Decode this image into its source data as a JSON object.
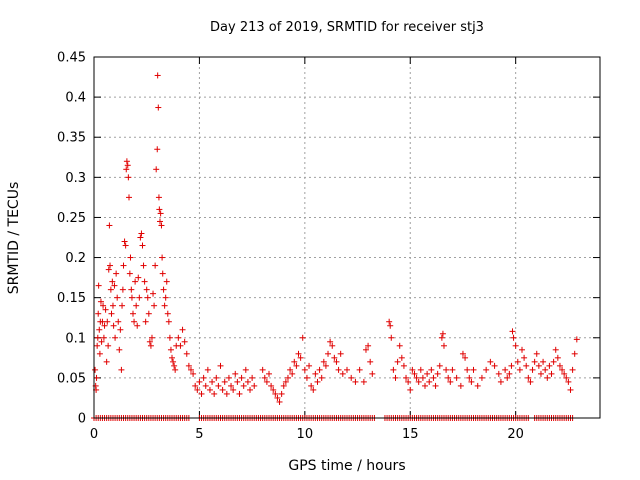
{
  "chart_data": {
    "type": "scatter",
    "title": "Day 213 of 2019, SRMTID for receiver stj3",
    "xlabel": "GPS time / hours",
    "ylabel": "SRMTID / TECUs",
    "xlim": [
      0,
      24
    ],
    "ylim": [
      0,
      0.45
    ],
    "xticks": [
      0,
      5,
      10,
      15,
      20
    ],
    "yticks": [
      0,
      0.05,
      0.1,
      0.15,
      0.2,
      0.25,
      0.3,
      0.35,
      0.4,
      0.45
    ],
    "xtick_labels": [
      "0",
      "5",
      "10",
      "15",
      "20"
    ],
    "ytick_labels": [
      "0",
      "0.05",
      "0.1",
      "0.15",
      "0.2",
      "0.25",
      "0.3",
      "0.35",
      "0.4",
      "0.45"
    ],
    "grid": true,
    "marker": "+",
    "color": "#e00000",
    "series": [
      {
        "name": "SRMTID",
        "points": [
          [
            0.05,
            0.06
          ],
          [
            0.08,
            0.04
          ],
          [
            0.1,
            0.035
          ],
          [
            0.12,
            0.05
          ],
          [
            0.15,
            0.09
          ],
          [
            0.18,
            0.1
          ],
          [
            0.2,
            0.13
          ],
          [
            0.22,
            0.165
          ],
          [
            0.25,
            0.11
          ],
          [
            0.28,
            0.08
          ],
          [
            0.3,
            0.12
          ],
          [
            0.33,
            0.145
          ],
          [
            0.36,
            0.095
          ],
          [
            0.4,
            0.12
          ],
          [
            0.43,
            0.14
          ],
          [
            0.47,
            0.1
          ],
          [
            0.5,
            0.115
          ],
          [
            0.55,
            0.135
          ],
          [
            0.6,
            0.07
          ],
          [
            0.63,
            0.12
          ],
          [
            0.67,
            0.09
          ],
          [
            0.7,
            0.185
          ],
          [
            0.73,
            0.24
          ],
          [
            0.76,
            0.19
          ],
          [
            0.8,
            0.16
          ],
          [
            0.83,
            0.13
          ],
          [
            0.87,
            0.17
          ],
          [
            0.9,
            0.14
          ],
          [
            0.93,
            0.115
          ],
          [
            0.97,
            0.165
          ],
          [
            1.0,
            0.1
          ],
          [
            1.05,
            0.18
          ],
          [
            1.1,
            0.15
          ],
          [
            1.15,
            0.12
          ],
          [
            1.2,
            0.085
          ],
          [
            1.25,
            0.11
          ],
          [
            1.3,
            0.06
          ],
          [
            1.33,
            0.14
          ],
          [
            1.37,
            0.16
          ],
          [
            1.4,
            0.19
          ],
          [
            1.45,
            0.22
          ],
          [
            1.5,
            0.215
          ],
          [
            1.53,
            0.31
          ],
          [
            1.56,
            0.32
          ],
          [
            1.6,
            0.315
          ],
          [
            1.63,
            0.3
          ],
          [
            1.66,
            0.275
          ],
          [
            1.7,
            0.18
          ],
          [
            1.73,
            0.2
          ],
          [
            1.77,
            0.16
          ],
          [
            1.8,
            0.15
          ],
          [
            1.85,
            0.13
          ],
          [
            1.9,
            0.12
          ],
          [
            1.95,
            0.17
          ],
          [
            2.0,
            0.14
          ],
          [
            2.05,
            0.115
          ],
          [
            2.1,
            0.175
          ],
          [
            2.15,
            0.15
          ],
          [
            2.2,
            0.225
          ],
          [
            2.25,
            0.23
          ],
          [
            2.3,
            0.215
          ],
          [
            2.35,
            0.19
          ],
          [
            2.4,
            0.17
          ],
          [
            2.45,
            0.12
          ],
          [
            2.5,
            0.16
          ],
          [
            2.55,
            0.15
          ],
          [
            2.6,
            0.13
          ],
          [
            2.65,
            0.095
          ],
          [
            2.7,
            0.09
          ],
          [
            2.75,
            0.1
          ],
          [
            2.8,
            0.155
          ],
          [
            2.85,
            0.14
          ],
          [
            2.9,
            0.19
          ],
          [
            2.95,
            0.31
          ],
          [
            3.0,
            0.335
          ],
          [
            3.02,
            0.427
          ],
          [
            3.05,
            0.387
          ],
          [
            3.08,
            0.275
          ],
          [
            3.1,
            0.26
          ],
          [
            3.13,
            0.245
          ],
          [
            3.16,
            0.255
          ],
          [
            3.2,
            0.24
          ],
          [
            3.23,
            0.2
          ],
          [
            3.26,
            0.18
          ],
          [
            3.3,
            0.16
          ],
          [
            3.35,
            0.14
          ],
          [
            3.4,
            0.15
          ],
          [
            3.45,
            0.17
          ],
          [
            3.5,
            0.13
          ],
          [
            3.55,
            0.12
          ],
          [
            3.6,
            0.1
          ],
          [
            3.65,
            0.085
          ],
          [
            3.7,
            0.075
          ],
          [
            3.75,
            0.07
          ],
          [
            3.8,
            0.065
          ],
          [
            3.85,
            0.06
          ],
          [
            3.9,
            0.09
          ],
          [
            4.0,
            0.1
          ],
          [
            4.1,
            0.09
          ],
          [
            4.2,
            0.11
          ],
          [
            4.3,
            0.095
          ],
          [
            4.4,
            0.08
          ],
          [
            4.5,
            0.065
          ],
          [
            4.6,
            0.06
          ],
          [
            4.7,
            0.055
          ],
          [
            4.8,
            0.04
          ],
          [
            4.9,
            0.035
          ],
          [
            5.0,
            0.045
          ],
          [
            5.1,
            0.03
          ],
          [
            5.2,
            0.05
          ],
          [
            5.3,
            0.04
          ],
          [
            5.4,
            0.06
          ],
          [
            5.5,
            0.035
          ],
          [
            5.6,
            0.045
          ],
          [
            5.7,
            0.03
          ],
          [
            5.8,
            0.05
          ],
          [
            5.9,
            0.04
          ],
          [
            6.0,
            0.065
          ],
          [
            6.1,
            0.035
          ],
          [
            6.2,
            0.045
          ],
          [
            6.3,
            0.03
          ],
          [
            6.4,
            0.05
          ],
          [
            6.5,
            0.04
          ],
          [
            6.6,
            0.035
          ],
          [
            6.7,
            0.055
          ],
          [
            6.8,
            0.045
          ],
          [
            6.9,
            0.03
          ],
          [
            7.0,
            0.05
          ],
          [
            7.1,
            0.04
          ],
          [
            7.2,
            0.06
          ],
          [
            7.3,
            0.045
          ],
          [
            7.4,
            0.035
          ],
          [
            7.5,
            0.05
          ],
          [
            7.6,
            0.04
          ],
          [
            8.0,
            0.06
          ],
          [
            8.1,
            0.05
          ],
          [
            8.2,
            0.045
          ],
          [
            8.3,
            0.055
          ],
          [
            8.4,
            0.04
          ],
          [
            8.5,
            0.035
          ],
          [
            8.6,
            0.03
          ],
          [
            8.7,
            0.025
          ],
          [
            8.8,
            0.02
          ],
          [
            8.9,
            0.03
          ],
          [
            9.0,
            0.04
          ],
          [
            9.1,
            0.045
          ],
          [
            9.2,
            0.05
          ],
          [
            9.3,
            0.06
          ],
          [
            9.4,
            0.055
          ],
          [
            9.5,
            0.07
          ],
          [
            9.6,
            0.065
          ],
          [
            9.7,
            0.08
          ],
          [
            9.8,
            0.075
          ],
          [
            9.9,
            0.1
          ],
          [
            10.0,
            0.06
          ],
          [
            10.1,
            0.05
          ],
          [
            10.2,
            0.065
          ],
          [
            10.3,
            0.04
          ],
          [
            10.4,
            0.035
          ],
          [
            10.5,
            0.055
          ],
          [
            10.6,
            0.045
          ],
          [
            10.7,
            0.06
          ],
          [
            10.8,
            0.05
          ],
          [
            10.9,
            0.07
          ],
          [
            11.0,
            0.065
          ],
          [
            11.1,
            0.08
          ],
          [
            11.2,
            0.095
          ],
          [
            11.3,
            0.09
          ],
          [
            11.4,
            0.075
          ],
          [
            11.5,
            0.07
          ],
          [
            11.6,
            0.06
          ],
          [
            11.7,
            0.08
          ],
          [
            11.8,
            0.055
          ],
          [
            12.0,
            0.06
          ],
          [
            12.2,
            0.05
          ],
          [
            12.4,
            0.045
          ],
          [
            12.6,
            0.06
          ],
          [
            12.8,
            0.045
          ],
          [
            12.9,
            0.085
          ],
          [
            13.0,
            0.09
          ],
          [
            13.1,
            0.07
          ],
          [
            13.2,
            0.055
          ],
          [
            14.0,
            0.12
          ],
          [
            14.05,
            0.115
          ],
          [
            14.1,
            0.1
          ],
          [
            14.2,
            0.06
          ],
          [
            14.3,
            0.05
          ],
          [
            14.4,
            0.07
          ],
          [
            14.5,
            0.09
          ],
          [
            14.6,
            0.075
          ],
          [
            14.7,
            0.065
          ],
          [
            14.8,
            0.05
          ],
          [
            14.9,
            0.045
          ],
          [
            15.0,
            0.035
          ],
          [
            15.1,
            0.06
          ],
          [
            15.2,
            0.055
          ],
          [
            15.3,
            0.05
          ],
          [
            15.4,
            0.045
          ],
          [
            15.5,
            0.06
          ],
          [
            15.6,
            0.05
          ],
          [
            15.7,
            0.04
          ],
          [
            15.8,
            0.055
          ],
          [
            15.9,
            0.045
          ],
          [
            16.0,
            0.06
          ],
          [
            16.1,
            0.05
          ],
          [
            16.2,
            0.04
          ],
          [
            16.3,
            0.055
          ],
          [
            16.4,
            0.065
          ],
          [
            16.5,
            0.1
          ],
          [
            16.55,
            0.105
          ],
          [
            16.6,
            0.09
          ],
          [
            16.7,
            0.06
          ],
          [
            16.8,
            0.05
          ],
          [
            16.9,
            0.045
          ],
          [
            17.0,
            0.06
          ],
          [
            17.2,
            0.05
          ],
          [
            17.4,
            0.04
          ],
          [
            17.5,
            0.08
          ],
          [
            17.6,
            0.075
          ],
          [
            17.7,
            0.06
          ],
          [
            17.8,
            0.05
          ],
          [
            17.9,
            0.045
          ],
          [
            18.0,
            0.06
          ],
          [
            18.2,
            0.04
          ],
          [
            18.4,
            0.05
          ],
          [
            18.6,
            0.06
          ],
          [
            18.8,
            0.07
          ],
          [
            19.0,
            0.065
          ],
          [
            19.2,
            0.055
          ],
          [
            19.3,
            0.045
          ],
          [
            19.5,
            0.06
          ],
          [
            19.6,
            0.05
          ],
          [
            19.7,
            0.055
          ],
          [
            19.8,
            0.065
          ],
          [
            19.85,
            0.108
          ],
          [
            19.9,
            0.1
          ],
          [
            20.0,
            0.09
          ],
          [
            20.1,
            0.07
          ],
          [
            20.2,
            0.06
          ],
          [
            20.3,
            0.085
          ],
          [
            20.4,
            0.075
          ],
          [
            20.5,
            0.065
          ],
          [
            20.6,
            0.05
          ],
          [
            20.7,
            0.045
          ],
          [
            20.8,
            0.06
          ],
          [
            20.9,
            0.07
          ],
          [
            21.0,
            0.08
          ],
          [
            21.1,
            0.065
          ],
          [
            21.2,
            0.055
          ],
          [
            21.3,
            0.07
          ],
          [
            21.4,
            0.06
          ],
          [
            21.5,
            0.05
          ],
          [
            21.6,
            0.065
          ],
          [
            21.7,
            0.055
          ],
          [
            21.8,
            0.07
          ],
          [
            21.9,
            0.085
          ],
          [
            22.0,
            0.075
          ],
          [
            22.1,
            0.065
          ],
          [
            22.2,
            0.06
          ],
          [
            22.3,
            0.055
          ],
          [
            22.4,
            0.05
          ],
          [
            22.5,
            0.045
          ],
          [
            22.6,
            0.035
          ],
          [
            22.7,
            0.06
          ],
          [
            22.8,
            0.08
          ],
          [
            22.9,
            0.098
          ]
        ],
        "zero_intervals": [
          [
            0.0,
            4.5
          ],
          [
            5.0,
            13.3
          ],
          [
            13.8,
            20.6
          ],
          [
            20.9,
            22.7
          ]
        ]
      }
    ]
  }
}
